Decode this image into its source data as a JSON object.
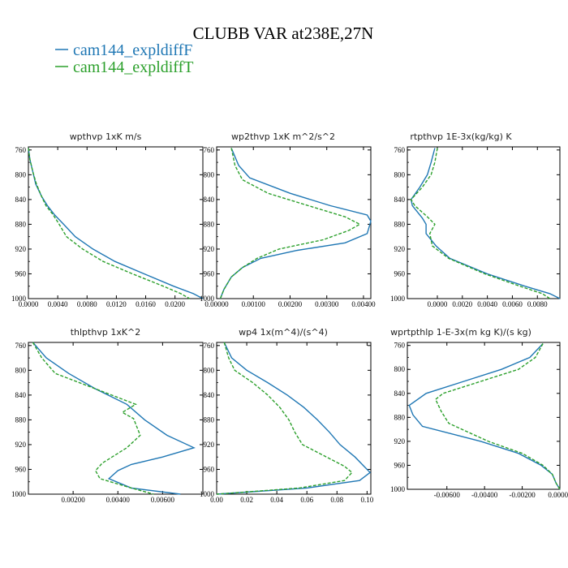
{
  "colors": {
    "series_F": "#1f77b4",
    "series_T": "#2ca02c",
    "axis": "#000000"
  },
  "title": "CLUBB VAR at238E,27N",
  "legend": [
    {
      "label": "cam144_expldiffF",
      "dash": "solid"
    },
    {
      "label": "cam144_expldiffT",
      "dash": "dashed"
    }
  ],
  "chart_data": [
    {
      "type": "line",
      "title": "wpthvp   1xK m/s",
      "xlim": [
        0,
        0.0238
      ],
      "xticks": [
        0.0,
        0.004,
        0.008,
        0.012,
        0.016,
        0.02
      ],
      "xticklabels": [
        "0.0000",
        "0.0040",
        "0.0080",
        "0.0120",
        "0.0160",
        "0.0200"
      ],
      "ylim": [
        1000,
        755
      ],
      "yticks": [
        760,
        800,
        840,
        880,
        920,
        960,
        1000
      ],
      "series": [
        {
          "name": "cam144_expldiffF",
          "y": [
            757,
            775,
            795,
            815,
            835,
            850,
            865,
            880,
            900,
            920,
            940,
            960,
            980,
            992,
            1000
          ],
          "x": [
            0.0,
            0.0002,
            0.0006,
            0.001,
            0.0018,
            0.0026,
            0.0036,
            0.0048,
            0.0064,
            0.0088,
            0.0118,
            0.0158,
            0.0198,
            0.0225,
            0.0238
          ]
        },
        {
          "name": "cam144_expldiffT",
          "y": [
            757,
            775,
            795,
            815,
            835,
            850,
            865,
            880,
            900,
            920,
            940,
            960,
            980,
            992,
            1000
          ],
          "x": [
            0.0,
            0.0002,
            0.0006,
            0.0011,
            0.0018,
            0.0024,
            0.0034,
            0.0042,
            0.0052,
            0.0074,
            0.0102,
            0.0142,
            0.0184,
            0.0208,
            0.022
          ]
        }
      ]
    },
    {
      "type": "line",
      "title": "wp2thvp   1xK m^2/s^2",
      "xlim": [
        0,
        0.0042
      ],
      "xticks": [
        0.0,
        0.001,
        0.002,
        0.003,
        0.004
      ],
      "xticklabels": [
        "0.00000",
        "0.00100",
        "0.00200",
        "0.00300",
        "0.00400"
      ],
      "ylim": [
        1000,
        755
      ],
      "yticks": [
        760,
        800,
        840,
        880,
        920,
        960,
        1000
      ],
      "series": [
        {
          "name": "cam144_expldiffF",
          "y": [
            757,
            785,
            805,
            830,
            850,
            865,
            875,
            895,
            910,
            922,
            935,
            950,
            965,
            985,
            1000
          ],
          "x": [
            0.0004,
            0.0006,
            0.0009,
            0.002,
            0.0031,
            0.0041,
            0.0042,
            0.0041,
            0.0035,
            0.0022,
            0.0012,
            0.0007,
            0.0004,
            0.0002,
            0.0001
          ]
        },
        {
          "name": "cam144_expldiffT",
          "y": [
            757,
            785,
            808,
            830,
            850,
            868,
            880,
            890,
            905,
            920,
            935,
            950,
            965,
            985,
            1000
          ],
          "x": [
            0.0004,
            0.0005,
            0.0007,
            0.0014,
            0.0025,
            0.0035,
            0.0039,
            0.0036,
            0.0029,
            0.0017,
            0.0011,
            0.0007,
            0.0004,
            0.0002,
            0.0001
          ]
        }
      ]
    },
    {
      "type": "line",
      "title": "rtpthvp   1E-3x(kg/kg) K",
      "xlim": [
        -0.0024,
        0.0098
      ],
      "xticks": [
        0.0,
        0.002,
        0.004,
        0.006,
        0.008
      ],
      "xticklabels": [
        "0.0000",
        "0.0020",
        "0.0040",
        "0.0060",
        "0.0080"
      ],
      "ylim": [
        1000,
        755
      ],
      "yticks": [
        760,
        800,
        840,
        880,
        920,
        960,
        1000
      ],
      "series": [
        {
          "name": "cam144_expldiffF",
          "y": [
            757,
            780,
            800,
            820,
            840,
            850,
            870,
            880,
            895,
            915,
            935,
            960,
            980,
            992,
            1000
          ],
          "x": [
            -0.0002,
            -0.0005,
            -0.0008,
            -0.0014,
            -0.0021,
            -0.002,
            -0.0012,
            -0.0009,
            -0.0009,
            -0.0001,
            0.001,
            0.004,
            0.007,
            0.009,
            0.0098
          ]
        },
        {
          "name": "cam144_expldiffT",
          "y": [
            757,
            780,
            800,
            820,
            840,
            850,
            868,
            880,
            895,
            915,
            935,
            960,
            980,
            992,
            1000
          ],
          "x": [
            0.0,
            -0.0002,
            -0.0005,
            -0.0012,
            -0.0021,
            -0.0018,
            -0.0008,
            -0.0002,
            -0.0006,
            -0.0004,
            0.0009,
            0.0038,
            0.0066,
            0.0084,
            0.009
          ]
        }
      ]
    },
    {
      "type": "line",
      "title": "thlpthvp   1xK^2",
      "xlim": [
        0,
        0.0078
      ],
      "xticks": [
        0.002,
        0.004,
        0.006
      ],
      "xticklabels": [
        "0.00200",
        "0.00400",
        "0.00600"
      ],
      "ylim": [
        1000,
        755
      ],
      "yticks": [
        760,
        800,
        840,
        880,
        920,
        960,
        1000
      ],
      "series": [
        {
          "name": "cam144_expldiffF",
          "y": [
            755,
            780,
            805,
            830,
            855,
            880,
            905,
            925,
            940,
            952,
            962,
            975,
            990,
            1000
          ],
          "x": [
            0.0002,
            0.0008,
            0.0018,
            0.003,
            0.0044,
            0.0052,
            0.0062,
            0.0074,
            0.006,
            0.0046,
            0.004,
            0.0036,
            0.0046,
            0.0068
          ]
        },
        {
          "name": "cam144_expldiffT",
          "y": [
            755,
            780,
            805,
            830,
            855,
            868,
            878,
            905,
            925,
            950,
            962,
            975,
            990,
            1000
          ],
          "x": [
            0.0002,
            0.0006,
            0.0012,
            0.003,
            0.0048,
            0.0042,
            0.0047,
            0.005,
            0.0044,
            0.0033,
            0.003,
            0.0032,
            0.0046,
            0.0056
          ]
        }
      ]
    },
    {
      "type": "line",
      "title": "wp4   1x(m^4)/(s^4)",
      "xlim": [
        0,
        0.1025
      ],
      "xticks": [
        0.0,
        0.02,
        0.04,
        0.06,
        0.08,
        0.1
      ],
      "xticklabels": [
        "0.00",
        "0.02",
        "0.04",
        "0.06",
        "0.08",
        "0.10"
      ],
      "ylim": [
        1000,
        755
      ],
      "yticks": [
        760,
        800,
        840,
        880,
        920,
        960,
        1000
      ],
      "series": [
        {
          "name": "cam144_expldiffF",
          "y": [
            755,
            780,
            800,
            820,
            840,
            860,
            880,
            900,
            920,
            940,
            955,
            965,
            978,
            990,
            1000
          ],
          "x": [
            0.005,
            0.01,
            0.02,
            0.034,
            0.047,
            0.058,
            0.067,
            0.075,
            0.082,
            0.092,
            0.098,
            0.102,
            0.095,
            0.06,
            0.0
          ]
        },
        {
          "name": "cam144_expldiffT",
          "y": [
            755,
            780,
            800,
            820,
            840,
            860,
            880,
            900,
            920,
            940,
            955,
            965,
            978,
            990,
            1000
          ],
          "x": [
            0.005,
            0.008,
            0.012,
            0.024,
            0.034,
            0.042,
            0.048,
            0.052,
            0.057,
            0.073,
            0.085,
            0.09,
            0.085,
            0.055,
            0.0
          ]
        }
      ]
    },
    {
      "type": "line",
      "title": "wprtpthlp   1-E-3x(m kg K)/(s kg)",
      "xlim": [
        -0.0081,
        0.0
      ],
      "xticks": [
        -0.006,
        -0.004,
        -0.002,
        0.0
      ],
      "xticklabels": [
        "-0.00600",
        "-0.00400",
        "-0.00200",
        "0.00000"
      ],
      "ylim": [
        1000,
        755
      ],
      "yticks": [
        760,
        800,
        840,
        880,
        920,
        960,
        1000
      ],
      "series": [
        {
          "name": "cam144_expldiffF",
          "y": [
            757,
            780,
            800,
            820,
            840,
            860,
            876,
            895,
            920,
            940,
            960,
            975,
            990,
            1000
          ],
          "x": [
            -0.0009,
            -0.0016,
            -0.0031,
            -0.0051,
            -0.0071,
            -0.008,
            -0.0078,
            -0.0073,
            -0.0042,
            -0.0022,
            -0.001,
            -0.0004,
            -0.0002,
            0.0
          ]
        },
        {
          "name": "cam144_expldiffT",
          "y": [
            757,
            780,
            800,
            820,
            840,
            850,
            870,
            890,
            920,
            940,
            960,
            975,
            990,
            1000
          ],
          "x": [
            -0.0009,
            -0.0013,
            -0.0022,
            -0.0042,
            -0.0062,
            -0.0066,
            -0.0063,
            -0.0059,
            -0.0038,
            -0.002,
            -0.0009,
            -0.0004,
            -0.0002,
            0.0
          ]
        }
      ]
    }
  ]
}
